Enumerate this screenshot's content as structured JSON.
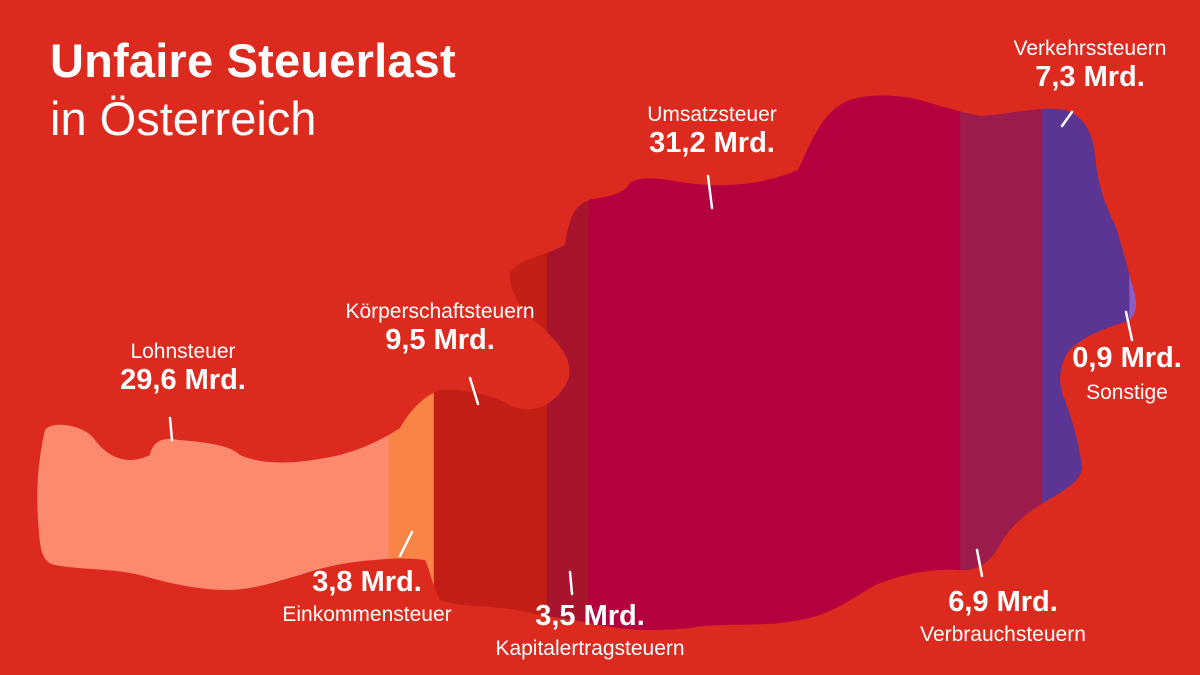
{
  "title": "Unfaire Steuerlast",
  "subtitle": "in Österreich",
  "colors": {
    "background": "#dc2a1f",
    "Lohnsteuer": "#fb8a6e",
    "Einkommensteuer": "#f88445",
    "Körperschaftsteuern": "#c31f17",
    "Kapitalertragsteuern": "#a8132d",
    "Umsatzsteuer": "#b5003f",
    "Verbrauchsteuern": "#9c1d4d",
    "Verkehrssteuern": "#5a3594",
    "Sonstige": "#8a5ec4",
    "text": "#ffffff"
  },
  "chart_data": {
    "type": "area",
    "title": "Unfaire Steuerlast",
    "subtitle": "in Österreich",
    "unit": "Mrd.",
    "categories": [
      "Lohnsteuer",
      "Einkommensteuer",
      "Körperschaftsteuern",
      "Kapitalertragsteuern",
      "Umsatzsteuer",
      "Verbrauchsteuern",
      "Verkehrssteuern",
      "Sonstige"
    ],
    "values": [
      29.6,
      3.8,
      9.5,
      3.5,
      31.2,
      6.9,
      7.3,
      0.9
    ],
    "value_labels": [
      "29,6 Mrd.",
      "3,8 Mrd.",
      "9,5 Mrd.",
      "3,5 Mrd.",
      "31,2 Mrd.",
      "6,9 Mrd.",
      "7,3 Mrd.",
      "0,9 Mrd."
    ]
  }
}
